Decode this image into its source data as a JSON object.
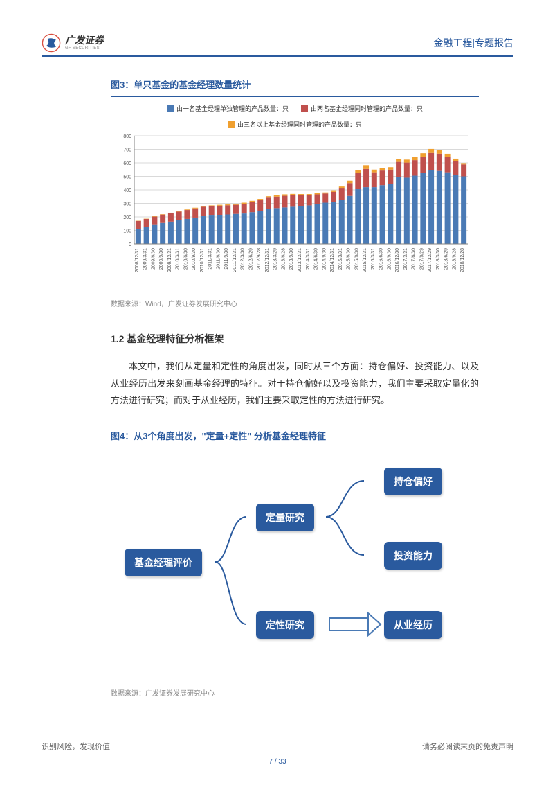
{
  "header": {
    "logo_cn": "广发证券",
    "logo_en": "GF SECURITIES",
    "right": "金融工程|专题报告"
  },
  "fig3": {
    "title": "图3：单只基金的基金经理数量统计",
    "legend": [
      {
        "label": "由一名基金经理单独管理的产品数量：只",
        "color": "#4a7ab5"
      },
      {
        "label": "由两名基金经理同时管理的产品数量：只",
        "color": "#c0504d"
      },
      {
        "label": "由三名以上基金经理同时管理的产品数量：只",
        "color": "#f0a030"
      }
    ],
    "ylim": [
      0,
      800
    ],
    "ytick_step": 100,
    "grid_color": "#d9d9d9",
    "axis_color": "#808080",
    "label_fontsize": 7,
    "categories": [
      "2008/12/31",
      "2009/3/31",
      "2009/6/30",
      "2009/9/30",
      "2009/12/31",
      "2010/3/31",
      "2010/6/30",
      "2010/9/30",
      "2010/12/31",
      "2011/3/31",
      "2011/6/30",
      "2011/9/30",
      "2011/12/31",
      "2012/3/30",
      "2012/6/29",
      "2012/9/28",
      "2012/12/31",
      "2013/3/29",
      "2013/6/28",
      "2013/9/30",
      "2013/12/31",
      "2014/3/31",
      "2014/6/30",
      "2014/9/30",
      "2014/12/31",
      "2015/3/31",
      "2015/6/30",
      "2015/9/30",
      "2015/12/31",
      "2016/3/31",
      "2016/6/30",
      "2016/9/30",
      "2016/12/30",
      "2017/3/31",
      "2017/6/30",
      "2017/9/29",
      "2017/12/29",
      "2018/3/30",
      "2018/6/29",
      "2018/9/28",
      "2018/12/28"
    ],
    "series": [
      {
        "name": "single",
        "color": "#4a7ab5",
        "values": [
          110,
          125,
          140,
          155,
          165,
          175,
          185,
          195,
          205,
          210,
          215,
          218,
          222,
          225,
          235,
          245,
          260,
          265,
          270,
          275,
          280,
          285,
          295,
          305,
          310,
          325,
          355,
          405,
          420,
          420,
          435,
          445,
          495,
          490,
          505,
          525,
          545,
          540,
          530,
          510,
          500
        ]
      },
      {
        "name": "double",
        "color": "#c0504d",
        "values": [
          60,
          60,
          62,
          62,
          63,
          64,
          66,
          68,
          70,
          70,
          68,
          68,
          67,
          72,
          75,
          78,
          82,
          85,
          86,
          85,
          80,
          75,
          72,
          68,
          75,
          85,
          95,
          120,
          135,
          110,
          108,
          105,
          112,
          112,
          115,
          120,
          128,
          128,
          115,
          105,
          88
        ]
      },
      {
        "name": "triple",
        "color": "#f0a030",
        "values": [
          2,
          2,
          3,
          3,
          3,
          4,
          4,
          5,
          5,
          5,
          6,
          6,
          7,
          8,
          9,
          10,
          11,
          11,
          11,
          10,
          9,
          9,
          9,
          8,
          12,
          15,
          18,
          22,
          28,
          20,
          20,
          18,
          22,
          22,
          24,
          26,
          30,
          28,
          22,
          16,
          10
        ]
      }
    ],
    "source": "数据来源：Wind，广发证券发展研究中心"
  },
  "section": {
    "title": "1.2 基金经理特征分析框架",
    "body": "本文中，我们从定量和定性的角度出发，同时从三个方面：持仓偏好、投资能力、以及从业经历出发来刻画基金经理的特征。对于持仓偏好以及投资能力，我们主要采取定量化的方法进行研究；而对于从业经历，我们主要采取定性的方法进行研究。"
  },
  "fig4": {
    "title": "图4：从3个角度出发，\"定量+定性\" 分析基金经理特征",
    "nodes": {
      "root": "基金经理评价",
      "quant": "定量研究",
      "qual": "定性研究",
      "pref": "持仓偏好",
      "ability": "投资能力",
      "exp": "从业经历"
    },
    "node_color": "#2a5a9e",
    "connector_color": "#2a5a9e",
    "arrow_color": "#4a7ab5",
    "source": "数据来源：广发证券发展研究中心"
  },
  "footer": {
    "left": "识别风险，发现价值",
    "right": "请务必阅读末页的免责声明",
    "page": "7",
    "total": "33"
  }
}
